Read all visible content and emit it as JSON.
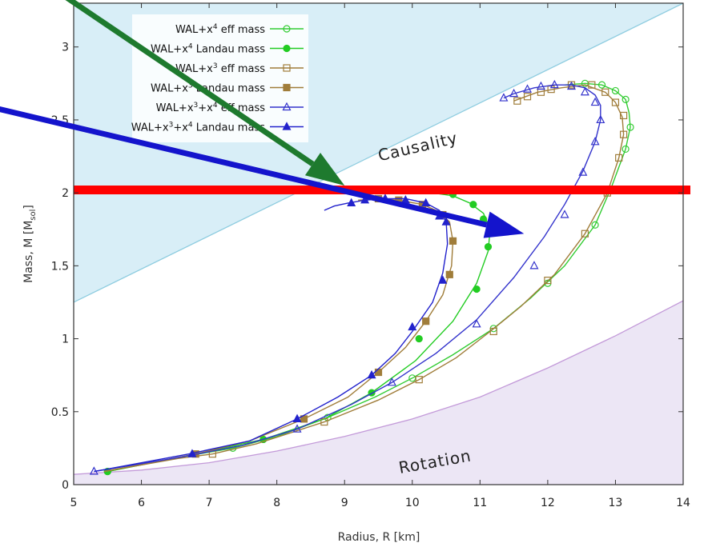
{
  "chart_data": {
    "type": "line",
    "xlabel": "Radius, R [km]",
    "ylabel": "Mass, M [M",
    "ylabel_sub": "sol",
    "ylabel_end": "]",
    "xlim": [
      5,
      14
    ],
    "ylim": [
      0,
      3.3
    ],
    "xticks": [
      5,
      6,
      7,
      8,
      9,
      10,
      11,
      12,
      13,
      14
    ],
    "yticks": [
      0,
      0.5,
      1,
      1.5,
      2,
      2.5,
      3
    ],
    "grid": false,
    "legend_position": "top-left",
    "regions": [
      {
        "label": "Causality",
        "color": "#d8eef7",
        "line_color": "#8fcde0",
        "line": [
          [
            5,
            1.25
          ],
          [
            14,
            3.3
          ]
        ]
      },
      {
        "label": "Rotation",
        "color": "#ece6f5",
        "line_color": "#c39ad9",
        "line": [
          [
            5,
            0.07
          ],
          [
            6,
            0.1
          ],
          [
            7,
            0.15
          ],
          [
            8,
            0.23
          ],
          [
            9,
            0.33
          ],
          [
            10,
            0.45
          ],
          [
            11,
            0.6
          ],
          [
            12,
            0.8
          ],
          [
            13,
            1.02
          ],
          [
            14,
            1.26
          ]
        ]
      }
    ],
    "reference_line": {
      "y": 2.02,
      "color": "#ff0000"
    },
    "series": [
      {
        "name": "WAL+x4 eff mass",
        "base": "WAL+x",
        "sup": "4",
        "tail": " eff mass",
        "color": "#33cc33",
        "marker": "circle-open",
        "x": [
          5.5,
          6.6,
          7.35,
          8.0,
          8.75,
          9.45,
          10.0,
          10.6,
          11.2,
          11.75,
          12.25,
          12.7,
          12.95,
          13.15,
          13.22,
          13.2,
          13.15,
          13.0,
          12.8,
          12.55,
          12.25
        ],
        "y": [
          0.09,
          0.19,
          0.25,
          0.33,
          0.46,
          0.6,
          0.73,
          0.89,
          1.07,
          1.28,
          1.5,
          1.78,
          2.05,
          2.3,
          2.45,
          2.55,
          2.64,
          2.7,
          2.74,
          2.75,
          2.74
        ],
        "marker_x": [
          5.5,
          7.35,
          8.75,
          10.0,
          11.2,
          12.0,
          12.7,
          13.15,
          13.22,
          13.15,
          13.0,
          12.8,
          12.55
        ],
        "marker_y": [
          0.09,
          0.25,
          0.46,
          0.73,
          1.07,
          1.38,
          1.78,
          2.3,
          2.45,
          2.64,
          2.7,
          2.74,
          2.75
        ]
      },
      {
        "name": "WAL+x4 Landau mass",
        "base": "WAL+x",
        "sup": "4",
        "tail": " Landau mass",
        "color": "#22cc22",
        "marker": "circle-filled",
        "x": [
          5.5,
          6.7,
          7.8,
          8.7,
          9.4,
          10.05,
          10.6,
          10.95,
          11.12,
          11.15,
          11.05,
          10.85,
          10.6,
          10.3
        ],
        "y": [
          0.09,
          0.2,
          0.31,
          0.45,
          0.63,
          0.85,
          1.12,
          1.38,
          1.6,
          1.75,
          1.86,
          1.93,
          1.98,
          2.0
        ],
        "marker_x": [
          5.5,
          7.8,
          9.4,
          10.1,
          10.95,
          11.12,
          11.05,
          10.9,
          10.6
        ],
        "marker_y": [
          0.09,
          0.31,
          0.63,
          1.0,
          1.34,
          1.63,
          1.82,
          1.92,
          1.99
        ]
      },
      {
        "name": "WAL+x3 eff mass",
        "base": "WAL+x",
        "sup": "3",
        "tail": " eff mass",
        "color": "#a07d3a",
        "marker": "square-open",
        "x": [
          5.45,
          6.55,
          7.05,
          7.7,
          8.7,
          9.5,
          10.1,
          10.65,
          11.15,
          11.6,
          12.1,
          12.55,
          12.88,
          13.05,
          13.12,
          13.1,
          13.0,
          12.85,
          12.55,
          12.2,
          11.85,
          11.5
        ],
        "y": [
          0.09,
          0.18,
          0.21,
          0.28,
          0.43,
          0.58,
          0.72,
          0.87,
          1.05,
          1.22,
          1.44,
          1.72,
          2.0,
          2.24,
          2.4,
          2.52,
          2.62,
          2.69,
          2.74,
          2.72,
          2.69,
          2.63
        ],
        "marker_x": [
          7.05,
          8.7,
          10.1,
          11.2,
          12.0,
          12.55,
          12.88,
          13.05,
          13.12,
          13.12,
          13.0,
          12.85,
          12.65,
          12.35,
          12.05,
          11.9,
          11.7,
          11.55
        ],
        "marker_y": [
          0.21,
          0.43,
          0.72,
          1.05,
          1.4,
          1.72,
          2.0,
          2.24,
          2.4,
          2.53,
          2.62,
          2.69,
          2.74,
          2.74,
          2.71,
          2.69,
          2.66,
          2.63
        ]
      },
      {
        "name": "WAL+x3 Landau mass",
        "base": "WAL+x",
        "sup": "3",
        "tail": " Landau mass",
        "color": "#a07d3a",
        "marker": "square-filled",
        "x": [
          5.45,
          6.8,
          7.6,
          8.4,
          9.05,
          9.5,
          9.9,
          10.2,
          10.45,
          10.58,
          10.6,
          10.55,
          10.4,
          10.15,
          9.8,
          9.5,
          9.2
        ],
        "y": [
          0.09,
          0.21,
          0.3,
          0.45,
          0.6,
          0.77,
          0.94,
          1.12,
          1.3,
          1.5,
          1.67,
          1.8,
          1.87,
          1.92,
          1.95,
          1.96,
          1.95
        ],
        "marker_x": [
          6.8,
          8.4,
          9.5,
          10.2,
          10.55,
          10.6,
          10.45,
          10.15,
          9.8,
          9.5
        ],
        "marker_y": [
          0.21,
          0.45,
          0.77,
          1.12,
          1.44,
          1.67,
          1.85,
          1.92,
          1.95,
          1.96
        ]
      },
      {
        "name": "WAL+x3+x4 eff mass",
        "base": "WAL+x",
        "sup": "3",
        "mid": "+x",
        "sup2": "4",
        "tail": " eff mass",
        "color": "#3333cc",
        "marker": "triangle-open",
        "x": [
          5.3,
          6.6,
          7.5,
          8.3,
          9.1,
          9.7,
          10.35,
          10.95,
          11.5,
          11.95,
          12.25,
          12.52,
          12.7,
          12.78,
          12.78,
          12.7,
          12.55,
          12.35,
          12.1,
          11.8,
          11.5,
          11.35
        ],
        "y": [
          0.09,
          0.19,
          0.27,
          0.38,
          0.55,
          0.7,
          0.9,
          1.13,
          1.42,
          1.7,
          1.92,
          2.15,
          2.35,
          2.5,
          2.6,
          2.67,
          2.72,
          2.74,
          2.74,
          2.72,
          2.68,
          2.65
        ],
        "marker_x": [
          5.3,
          8.3,
          9.7,
          10.95,
          11.8,
          12.25,
          12.52,
          12.7,
          12.78,
          12.7,
          12.55,
          12.35,
          12.1,
          11.9,
          11.7,
          11.5,
          11.35
        ],
        "marker_y": [
          0.09,
          0.38,
          0.7,
          1.1,
          1.5,
          1.85,
          2.14,
          2.35,
          2.5,
          2.62,
          2.69,
          2.73,
          2.74,
          2.73,
          2.71,
          2.68,
          2.65
        ]
      },
      {
        "name": "WAL+x3+x4 Landau mass",
        "base": "WAL+x",
        "sup": "3",
        "mid": "+x",
        "sup2": "4",
        "tail": " Landau mass",
        "color": "#2222cc",
        "marker": "triangle-filled",
        "x": [
          5.3,
          6.7,
          7.6,
          8.3,
          8.9,
          9.4,
          9.75,
          10.0,
          10.3,
          10.45,
          10.52,
          10.5,
          10.4,
          10.2,
          9.9,
          9.6,
          9.3,
          9.05,
          8.85,
          8.7
        ],
        "y": [
          0.09,
          0.21,
          0.3,
          0.45,
          0.6,
          0.75,
          0.9,
          1.05,
          1.25,
          1.45,
          1.65,
          1.8,
          1.88,
          1.93,
          1.96,
          1.96,
          1.95,
          1.93,
          1.91,
          1.88
        ],
        "marker_x": [
          6.75,
          8.3,
          9.4,
          10.0,
          10.45,
          10.5,
          10.4,
          10.2,
          9.9,
          9.6,
          9.3,
          9.1
        ],
        "marker_y": [
          0.21,
          0.45,
          0.75,
          1.08,
          1.4,
          1.8,
          1.84,
          1.93,
          1.95,
          1.96,
          1.95,
          1.93
        ]
      }
    ],
    "annotations": [
      {
        "type": "arrow",
        "color": "#1e7a2e",
        "from": [
          4.0,
          3.62
        ],
        "to": [
          9.0,
          2.05
        ]
      },
      {
        "type": "arrow",
        "color": "#1414cc",
        "from": [
          3.85,
          2.58
        ],
        "to": [
          11.65,
          1.72
        ]
      }
    ]
  }
}
